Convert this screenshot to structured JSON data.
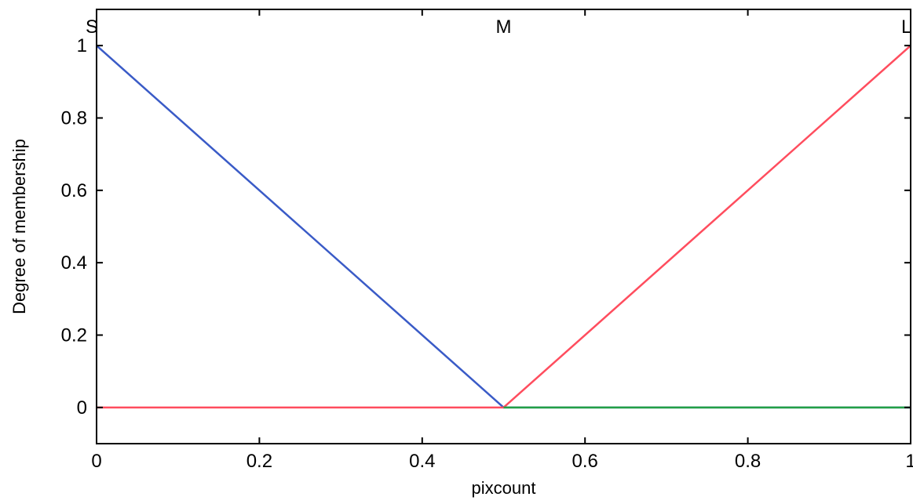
{
  "chart_data": {
    "type": "line",
    "title": "",
    "xlabel": "pixcount",
    "ylabel": "Degree of membership",
    "xlim": [
      0,
      1
    ],
    "ylim": [
      -0.1,
      1.1
    ],
    "xticks": [
      0,
      0.2,
      0.4,
      0.6,
      0.8,
      1
    ],
    "xtick_labels": [
      "0",
      "0.2",
      "0.4",
      "0.6",
      "0.8",
      "1"
    ],
    "yticks": [
      0,
      0.2,
      0.4,
      0.6,
      0.8,
      1
    ],
    "ytick_labels": [
      "0",
      "0.2",
      "0.4",
      "0.6",
      "0.8",
      "1"
    ],
    "grid": false,
    "series": [
      {
        "name": "S",
        "color": "#3a5bc7",
        "x": [
          0,
          0.5,
          1
        ],
        "y": [
          1,
          0,
          0
        ]
      },
      {
        "name": "M",
        "color": "#ff4d5e",
        "x": [
          0,
          0.5,
          1
        ],
        "y": [
          0,
          0,
          1
        ]
      },
      {
        "name": "L",
        "color": "#22a045",
        "x": [
          0.5,
          1
        ],
        "y": [
          0,
          0
        ]
      }
    ],
    "mf_labels": [
      {
        "text": "S",
        "x": 0,
        "y": 1.08
      },
      {
        "text": "M",
        "x": 0.5,
        "y": 1.08
      },
      {
        "text": "L",
        "x": 1,
        "y": 1.08
      }
    ]
  }
}
